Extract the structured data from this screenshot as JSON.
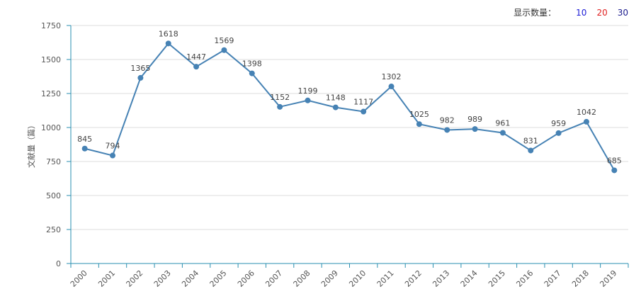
{
  "controls": {
    "label": "显示数量：",
    "options": [
      {
        "text": "10",
        "color": "#1a1ad6"
      },
      {
        "text": "20",
        "color": "#e02020"
      },
      {
        "text": "30",
        "color": "#1a1a8c"
      }
    ]
  },
  "chart_data": {
    "type": "line",
    "x": [
      "2000",
      "2001",
      "2002",
      "2003",
      "2004",
      "2005",
      "2006",
      "2007",
      "2008",
      "2009",
      "2010",
      "2011",
      "2012",
      "2013",
      "2014",
      "2015",
      "2016",
      "2017",
      "2018",
      "2019"
    ],
    "series": [
      {
        "values": [
          845,
          794,
          1365,
          1618,
          1447,
          1569,
          1398,
          1152,
          1199,
          1148,
          1117,
          1302,
          1025,
          982,
          989,
          961,
          831,
          959,
          1042,
          685
        ]
      }
    ],
    "ylabel": "文献量（篇）",
    "ylim": [
      0,
      1750
    ],
    "yticks": [
      0,
      250,
      500,
      750,
      1000,
      1250,
      1500,
      1750
    ],
    "grid": true,
    "line_color": "#4682b4",
    "axis_color": "#2a8fb0"
  }
}
